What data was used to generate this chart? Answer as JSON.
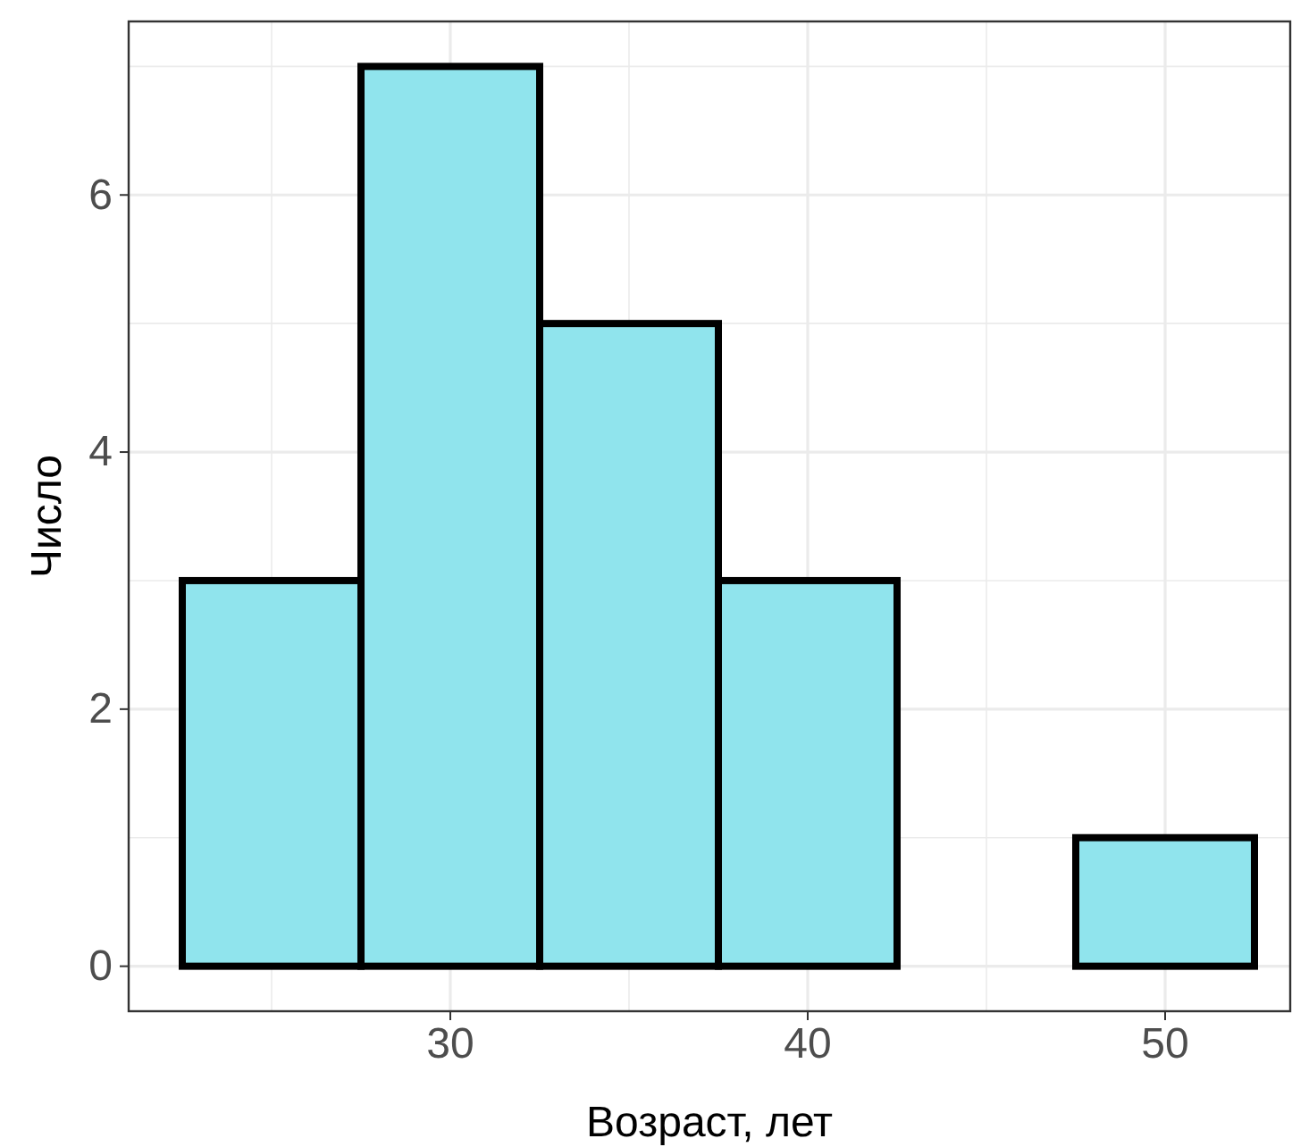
{
  "chart_data": {
    "type": "histogram",
    "xlabel": "Возраст, лет",
    "ylabel": "Число",
    "bins": [
      22.5,
      27.5,
      32.5,
      37.5,
      42.5,
      47.5,
      52.5
    ],
    "values": [
      3,
      7,
      5,
      3,
      0,
      1
    ],
    "color": "#90e4ed",
    "xlim": [
      21,
      53.5
    ],
    "xticks": [
      30,
      40,
      50
    ],
    "ylim": [
      -0.35,
      7.35
    ],
    "yticks": [
      0,
      2,
      4,
      6
    ],
    "grid": true
  }
}
